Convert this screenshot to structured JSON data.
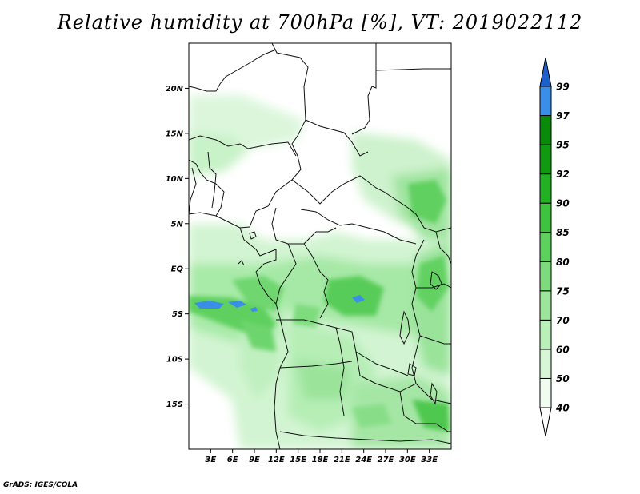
{
  "title": "Relative humidity at 700hPa [%], VT: 2019022112",
  "credit": "GrADS: IGES/COLA",
  "map": {
    "lon_range": [
      0,
      36
    ],
    "lat_range": [
      -20,
      25
    ],
    "lat_ticks": [
      {
        "lat": 20,
        "label": "20N"
      },
      {
        "lat": 15,
        "label": "15N"
      },
      {
        "lat": 10,
        "label": "10N"
      },
      {
        "lat": 5,
        "label": "5N"
      },
      {
        "lat": 0,
        "label": "EQ"
      },
      {
        "lat": -5,
        "label": "5S"
      },
      {
        "lat": -10,
        "label": "10S"
      },
      {
        "lat": -15,
        "label": "15S"
      }
    ],
    "lon_ticks": [
      {
        "lon": 3,
        "label": "3E"
      },
      {
        "lon": 6,
        "label": "6E"
      },
      {
        "lon": 9,
        "label": "9E"
      },
      {
        "lon": 12,
        "label": "12E"
      },
      {
        "lon": 15,
        "label": "15E"
      },
      {
        "lon": 18,
        "label": "18E"
      },
      {
        "lon": 21,
        "label": "21E"
      },
      {
        "lon": 24,
        "label": "24E"
      },
      {
        "lon": 27,
        "label": "27E"
      },
      {
        "lon": 30,
        "label": "30E"
      },
      {
        "lon": 33,
        "label": "33E"
      }
    ]
  },
  "colorbar": {
    "levels": [
      {
        "label": "40",
        "color": "#f0fcf0"
      },
      {
        "label": "50",
        "color": "#d6f6d6"
      },
      {
        "label": "60",
        "color": "#b9f0b9"
      },
      {
        "label": "70",
        "color": "#9be69b"
      },
      {
        "label": "75",
        "color": "#7ddb7d"
      },
      {
        "label": "80",
        "color": "#5ed05e"
      },
      {
        "label": "85",
        "color": "#3fc23f"
      },
      {
        "label": "90",
        "color": "#24b024"
      },
      {
        "label": "92",
        "color": "#119a11"
      },
      {
        "label": "95",
        "color": "#0a8a0a"
      },
      {
        "label": "97",
        "color": "#3a8ee8"
      },
      {
        "label": "99",
        "color": "#1f6fd6"
      }
    ],
    "top_color": "#1f5fcc",
    "bottom_color": "#ffffff"
  }
}
